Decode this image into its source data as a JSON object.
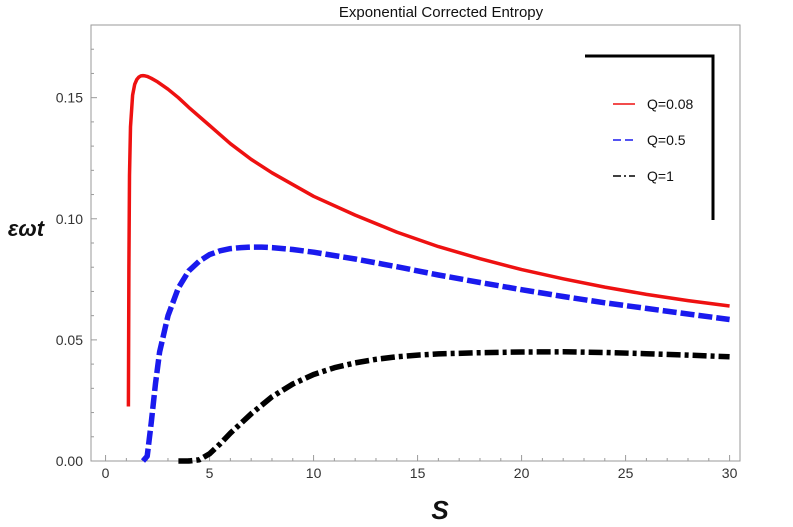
{
  "chart_data": {
    "type": "line",
    "title": "Exponential Corrected Entropy",
    "xlabel": "S",
    "ylabel": "εωt",
    "xlim": [
      -0.7,
      30.5
    ],
    "ylim": [
      0,
      0.18
    ],
    "x_ticks": [
      0,
      5,
      10,
      15,
      20,
      25,
      30
    ],
    "x_tick_labels": [
      "0",
      "5",
      "10",
      "15",
      "20",
      "25",
      "30"
    ],
    "y_ticks": [
      0,
      0.05,
      0.1,
      0.15
    ],
    "y_tick_labels": [
      "0.00",
      "0.05",
      "0.10",
      "0.15"
    ],
    "grid": false,
    "legend_position": "top-right",
    "series": [
      {
        "name": "Q=0.08",
        "color": "#ee1111",
        "style": "solid",
        "x": [
          1.1,
          1.12,
          1.15,
          1.2,
          1.3,
          1.4,
          1.5,
          1.6,
          1.7,
          1.8,
          1.9,
          2.0,
          2.2,
          2.5,
          3,
          3.5,
          4,
          5,
          6,
          7,
          8,
          10,
          12,
          14,
          16,
          18,
          20,
          22,
          24,
          26,
          28,
          30
        ],
        "y": [
          0.0225,
          0.08,
          0.118,
          0.138,
          0.151,
          0.1555,
          0.1575,
          0.1585,
          0.159,
          0.1591,
          0.159,
          0.1588,
          0.158,
          0.1565,
          0.1535,
          0.15,
          0.146,
          0.1385,
          0.131,
          0.1245,
          0.119,
          0.1093,
          0.1015,
          0.0945,
          0.0885,
          0.0835,
          0.079,
          0.0752,
          0.0718,
          0.0688,
          0.0662,
          0.064
        ]
      },
      {
        "name": "Q=0.5",
        "color": "#1a1aee",
        "style": "dashed",
        "x": [
          1.8,
          2.0,
          2.2,
          2.4,
          2.6,
          3,
          3.5,
          4,
          4.5,
          5,
          5.5,
          6,
          6.5,
          7,
          7.5,
          8,
          9,
          10,
          12,
          14,
          16,
          18,
          20,
          22,
          24,
          26,
          28,
          30
        ],
        "y": [
          0,
          0.002,
          0.016,
          0.032,
          0.045,
          0.06,
          0.0715,
          0.0785,
          0.0825,
          0.0852,
          0.0868,
          0.0877,
          0.0881,
          0.0883,
          0.0883,
          0.0881,
          0.0873,
          0.0862,
          0.0834,
          0.0802,
          0.0768,
          0.0737,
          0.0707,
          0.0679,
          0.0653,
          0.063,
          0.0607,
          0.0584
        ]
      },
      {
        "name": "Q=1",
        "color": "#000000",
        "style": "dashdot",
        "x": [
          3.5,
          4.0,
          4.5,
          5.0,
          5.5,
          6,
          7,
          8,
          9,
          10,
          11,
          12,
          13,
          14,
          15,
          16,
          18,
          20,
          22,
          24,
          26,
          28,
          30
        ],
        "y": [
          0,
          0,
          0.0005,
          0.003,
          0.007,
          0.0115,
          0.0195,
          0.0265,
          0.0318,
          0.0357,
          0.0385,
          0.0405,
          0.042,
          0.043,
          0.0437,
          0.0442,
          0.0447,
          0.045,
          0.0451,
          0.0448,
          0.0443,
          0.0437,
          0.043
        ]
      }
    ]
  }
}
